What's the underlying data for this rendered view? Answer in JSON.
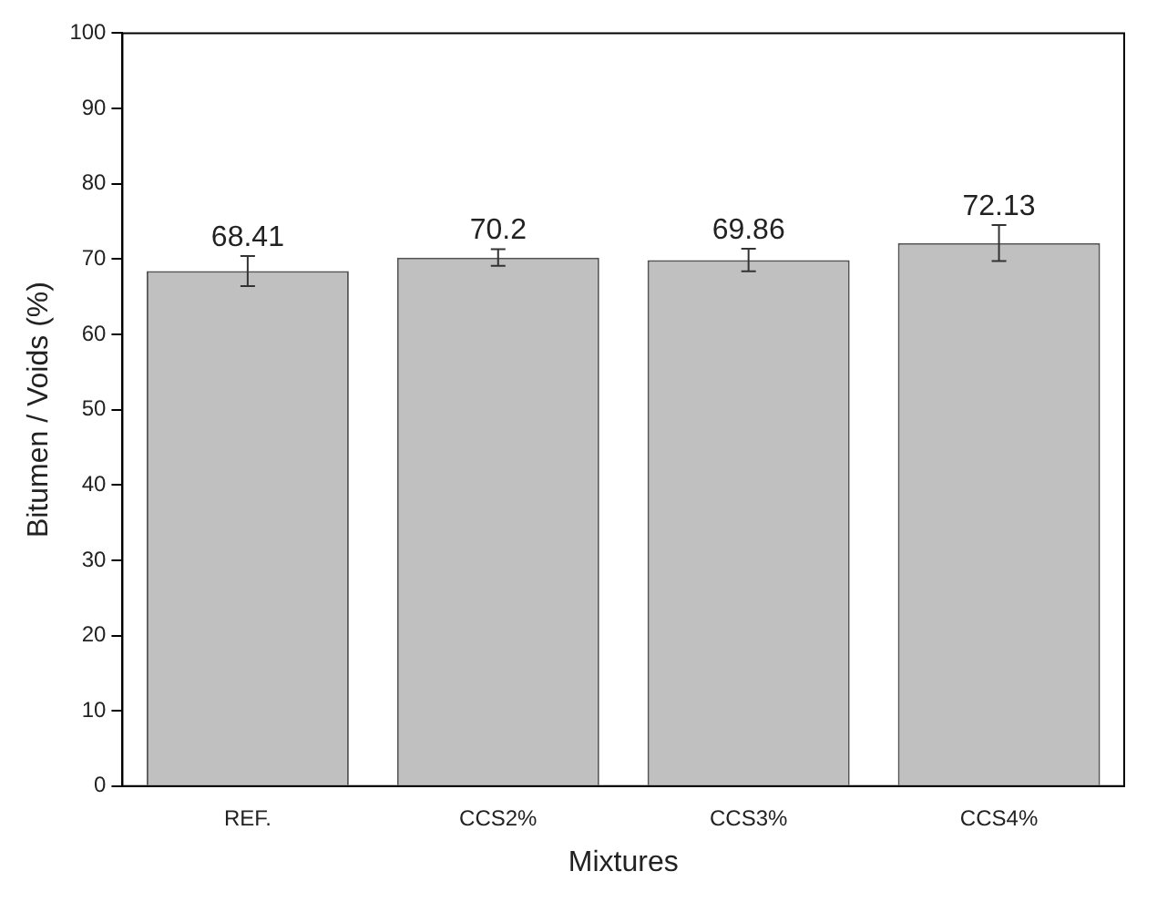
{
  "chart_data": {
    "type": "bar",
    "xlabel": "Mixtures",
    "ylabel": "Bitumen / Voids (%)",
    "categories": [
      "REF.",
      "CCS2%",
      "CCS3%",
      "CCS4%"
    ],
    "values": [
      68.41,
      70.2,
      69.86,
      72.13
    ],
    "errors": [
      2,
      1.1,
      1.5,
      2.4
    ],
    "color": "#c0c0c0",
    "ylim": [
      0,
      100
    ],
    "yticks": [
      0,
      10,
      20,
      30,
      40,
      50,
      60,
      70,
      80,
      90,
      100
    ],
    "data_labels": true,
    "grid": false,
    "legend": false
  }
}
